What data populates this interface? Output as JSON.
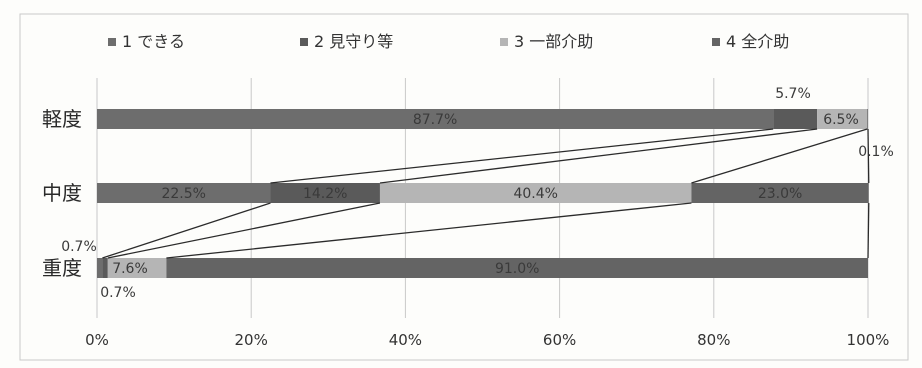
{
  "chart_data": {
    "type": "bar",
    "orientation": "horizontal",
    "stacked": "percent",
    "categories": [
      "軽度",
      "中度",
      "重度"
    ],
    "series": [
      {
        "name": "1 できる",
        "values": [
          87.7,
          22.5,
          0.7
        ]
      },
      {
        "name": "2 見守り等",
        "values": [
          5.7,
          14.2,
          0.7
        ]
      },
      {
        "name": "3 一部介助",
        "values": [
          6.5,
          40.4,
          7.6
        ]
      },
      {
        "name": "4 全介助",
        "values": [
          0.1,
          23.0,
          91.0
        ]
      }
    ],
    "data_labels": [
      [
        "87.7%",
        "5.7%",
        "6.5%",
        "0.1%"
      ],
      [
        "22.5%",
        "14.2%",
        "40.4%",
        "23.0%"
      ],
      [
        "0.7%",
        "0.7%",
        "7.6%",
        "91.0%"
      ]
    ],
    "x_ticks": [
      "0%",
      "20%",
      "40%",
      "60%",
      "80%",
      "100%"
    ],
    "xlim": [
      0,
      100
    ],
    "grid": "vertical",
    "legend_position": "top",
    "series_lines": true,
    "colors": {
      "1 できる": "#6d6d6d",
      "2 見守り等": "#5a5a5a",
      "3 一部介助": "#b5b5b5",
      "4 全介助": "#646464",
      "grid": "#c8c8c8",
      "lines": "#2b2b2b"
    }
  }
}
